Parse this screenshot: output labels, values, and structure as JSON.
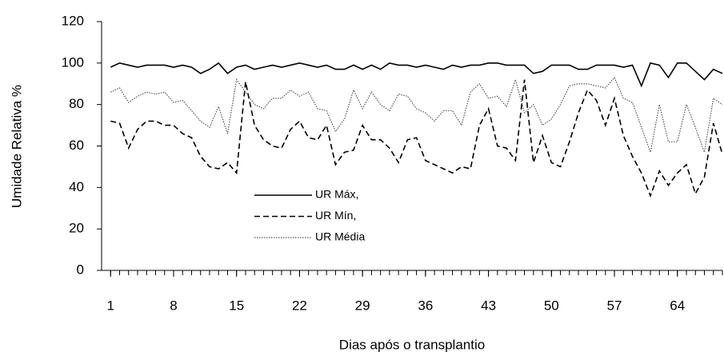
{
  "chart_data": {
    "type": "line",
    "x_label": "Dias após o transplantio",
    "y_label": "Umidade Relativa %",
    "x": [
      1,
      2,
      3,
      4,
      5,
      6,
      7,
      8,
      9,
      10,
      11,
      12,
      13,
      14,
      15,
      16,
      17,
      18,
      19,
      20,
      21,
      22,
      23,
      24,
      25,
      26,
      27,
      28,
      29,
      30,
      31,
      32,
      33,
      34,
      35,
      36,
      37,
      38,
      39,
      40,
      41,
      42,
      43,
      44,
      45,
      46,
      47,
      48,
      49,
      50,
      51,
      52,
      53,
      54,
      55,
      56,
      57,
      58,
      59,
      60,
      61,
      62,
      63,
      64,
      65,
      66,
      67,
      68,
      69
    ],
    "series": [
      {
        "name": "UR Máx,",
        "color": "#000000",
        "dash": "solid",
        "values": [
          98,
          100,
          99,
          98,
          99,
          99,
          99,
          98,
          99,
          98,
          95,
          97,
          100,
          95,
          98,
          99,
          97,
          98,
          99,
          98,
          99,
          100,
          99,
          98,
          99,
          97,
          97,
          99,
          97,
          99,
          97,
          100,
          99,
          99,
          98,
          99,
          98,
          97,
          99,
          98,
          99,
          99,
          100,
          100,
          99,
          99,
          99,
          95,
          96,
          99,
          99,
          99,
          97,
          97,
          99,
          99,
          99,
          98,
          99,
          89,
          100,
          99,
          93,
          100,
          100,
          96,
          92,
          97,
          95
        ]
      },
      {
        "name": "UR Mín,",
        "color": "#000000",
        "dash": "dashed",
        "values": [
          72,
          71,
          59,
          68,
          72,
          72,
          70,
          70,
          66,
          64,
          55,
          50,
          49,
          52,
          47,
          91,
          70,
          63,
          60,
          59,
          68,
          72,
          64,
          63,
          70,
          51,
          57,
          58,
          70,
          63,
          63,
          59,
          52,
          63,
          64,
          53,
          51,
          49,
          47,
          50,
          49,
          70,
          78,
          60,
          59,
          53,
          92,
          52,
          65,
          52,
          50,
          62,
          76,
          87,
          82,
          70,
          83,
          65,
          55,
          47,
          36,
          48,
          41,
          47,
          51,
          37,
          45,
          71,
          56
        ]
      },
      {
        "name": "UR Média",
        "color": "#555555",
        "dash": "dotted",
        "values": [
          86,
          88,
          81,
          84,
          86,
          85,
          86,
          81,
          82,
          77,
          72,
          69,
          79,
          66,
          92,
          86,
          80,
          78,
          83,
          83,
          87,
          84,
          86,
          78,
          77,
          67,
          73,
          87,
          78,
          86,
          80,
          77,
          85,
          84,
          78,
          76,
          72,
          77,
          77,
          70,
          86,
          90,
          83,
          84,
          79,
          92,
          76,
          80,
          70,
          73,
          80,
          89,
          90,
          90,
          89,
          88,
          93,
          83,
          81,
          69,
          57,
          80,
          62,
          62,
          80,
          69,
          57,
          83,
          80
        ]
      }
    ],
    "xlim": [
      0,
      69
    ],
    "xticks": [
      1,
      8,
      15,
      22,
      29,
      36,
      43,
      50,
      57,
      64
    ],
    "ylim": [
      0,
      120
    ],
    "yticks": [
      0,
      20,
      40,
      60,
      80,
      100,
      120
    ]
  }
}
